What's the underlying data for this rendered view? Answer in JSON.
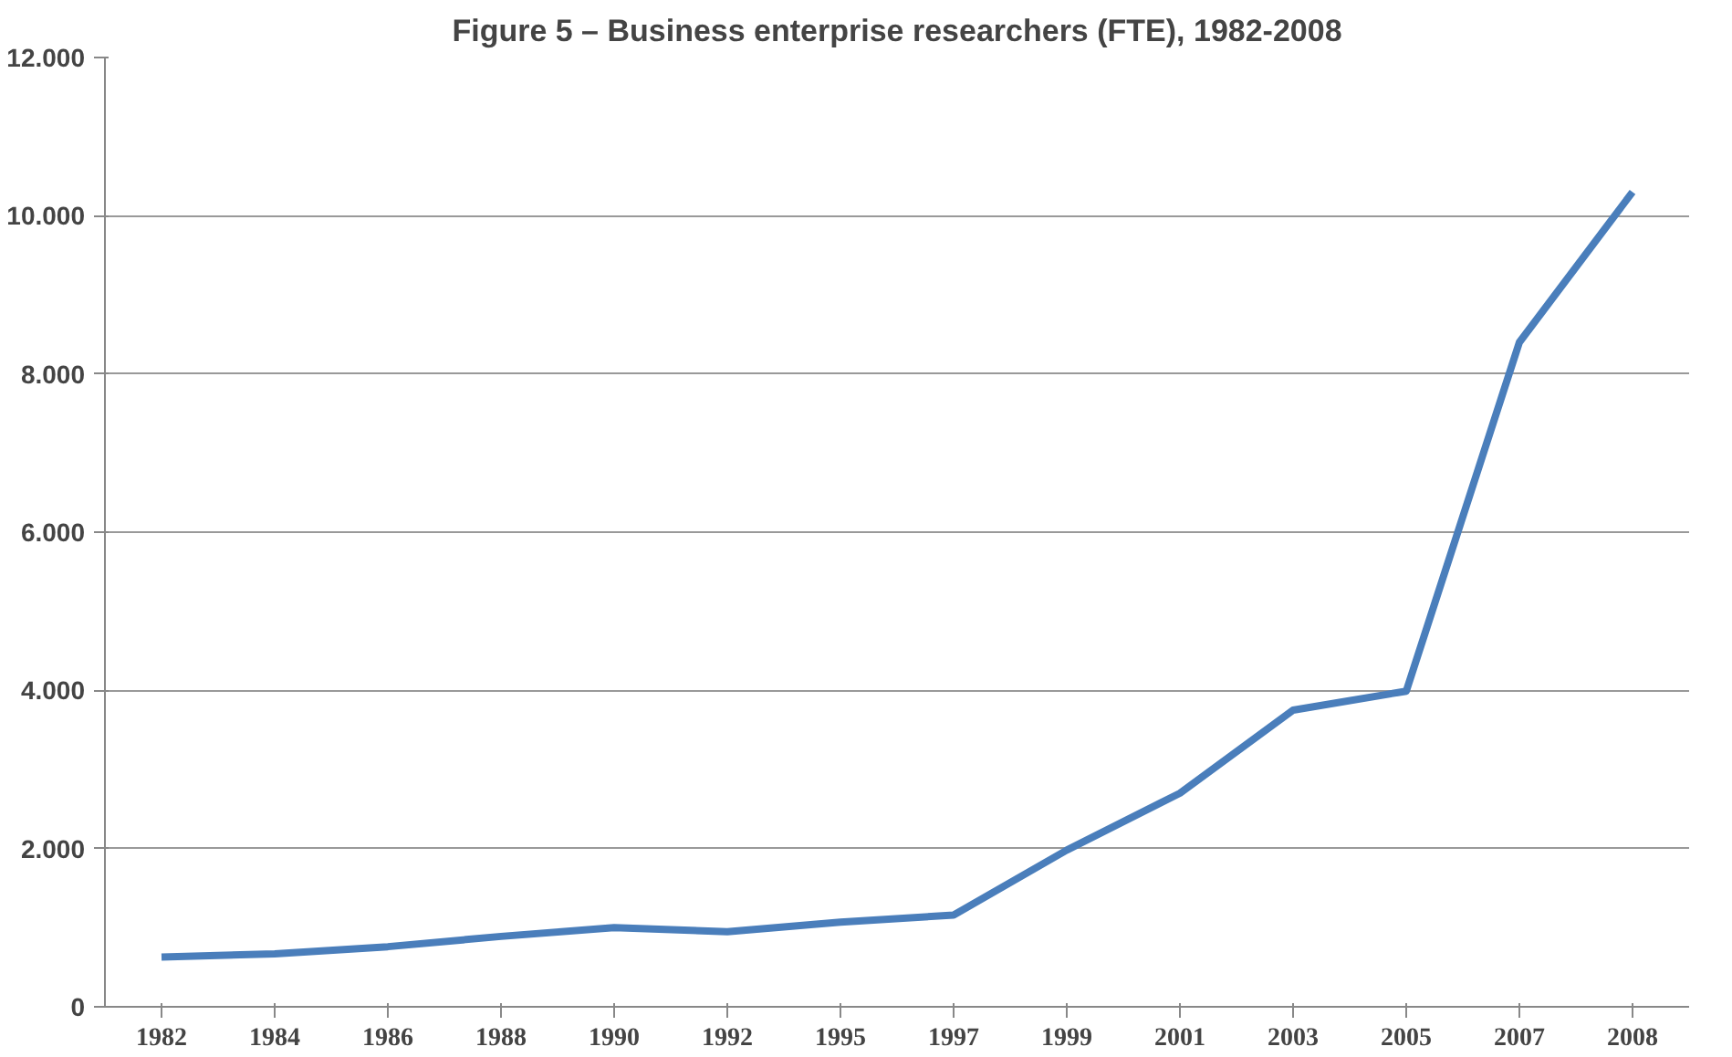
{
  "chart_data": {
    "type": "line",
    "title": "Figure 5 – Business enterprise researchers (FTE), 1982-2008",
    "categories": [
      "1982",
      "1984",
      "1986",
      "1988",
      "1990",
      "1992",
      "1995",
      "1997",
      "1999",
      "2001",
      "2003",
      "2005",
      "2007",
      "2008"
    ],
    "series": [
      {
        "color": "#4a7ebb",
        "values": [
          630,
          670,
          760,
          890,
          1000,
          950,
          1070,
          1160,
          1980,
          2700,
          3750,
          3990,
          8400,
          10300
        ]
      }
    ],
    "ylim": [
      0,
      12000
    ],
    "yticks": [
      {
        "value": 0,
        "label": "0"
      },
      {
        "value": 2000,
        "label": "2.000"
      },
      {
        "value": 4000,
        "label": "4.000"
      },
      {
        "value": 6000,
        "label": "6.000"
      },
      {
        "value": 8000,
        "label": "8.000"
      },
      {
        "value": 10000,
        "label": "10.000"
      },
      {
        "value": 12000,
        "label": "12.000"
      }
    ],
    "grid": "y",
    "marker": "none",
    "line_style": "solid"
  }
}
